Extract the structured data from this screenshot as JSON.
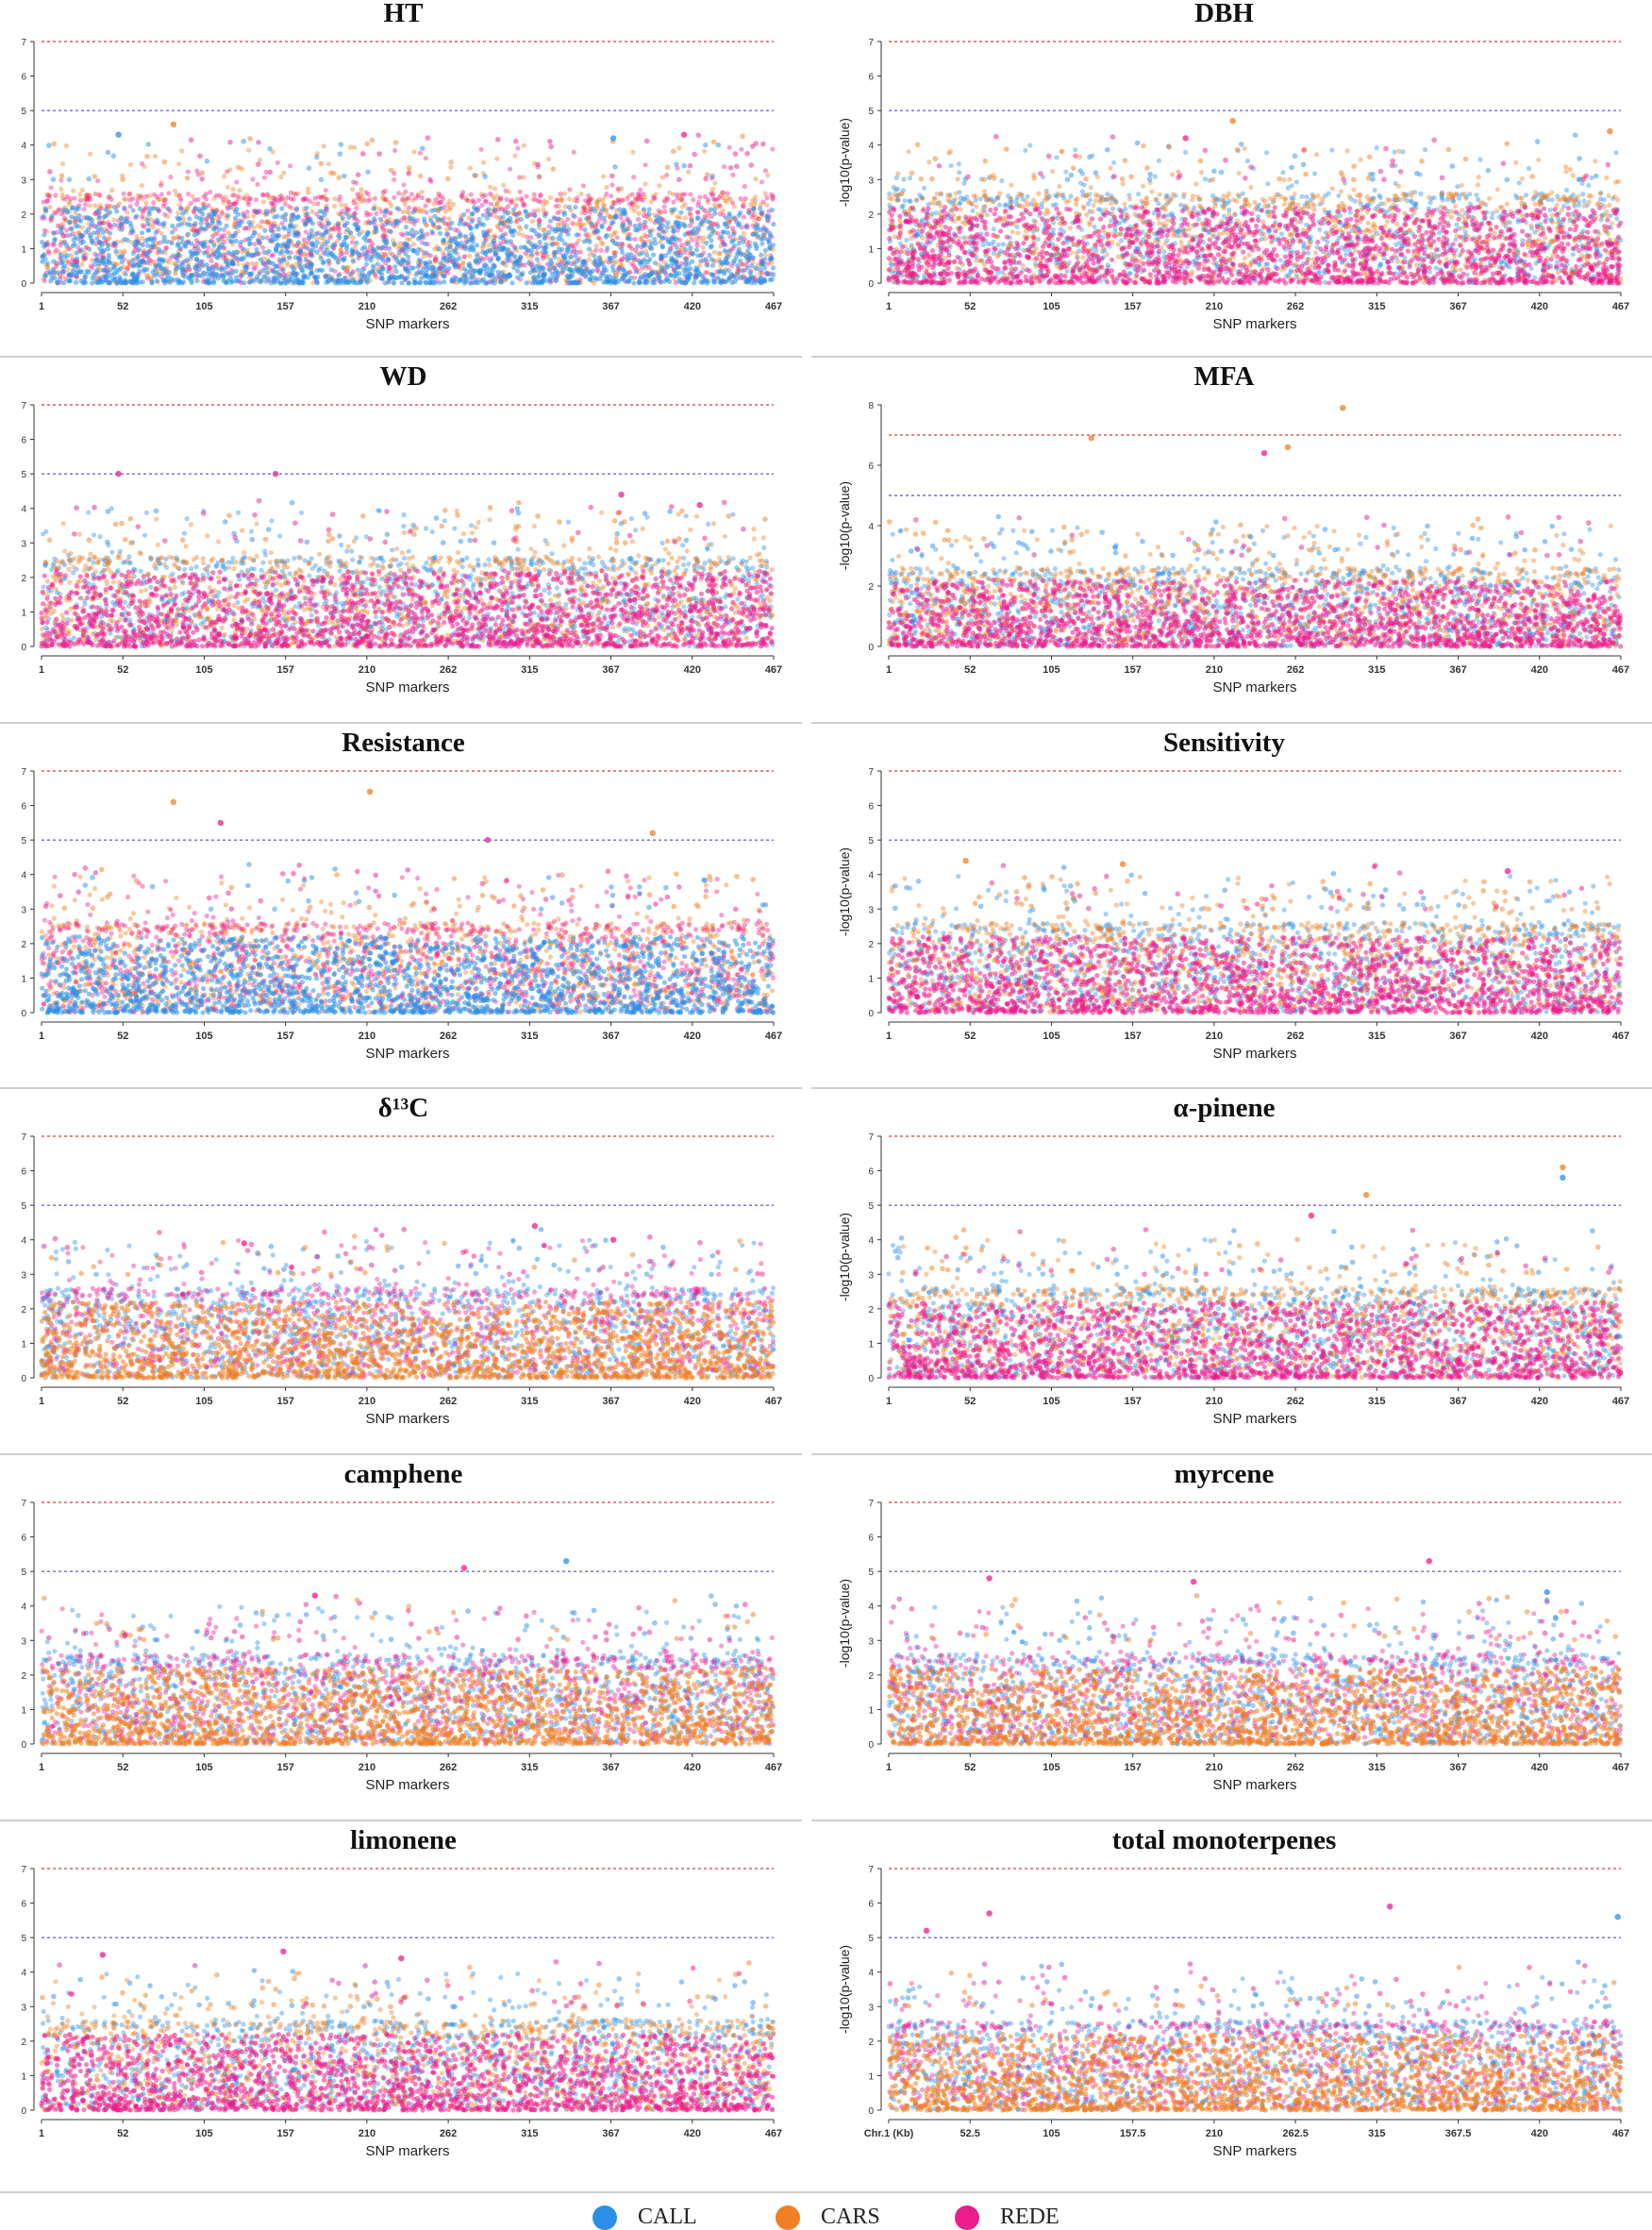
{
  "colors": {
    "CALL": "#2b8fe8",
    "CARS": "#ef7f22",
    "REDE": "#ec1c8c",
    "threshold_upper": "#e05a5a",
    "threshold_lower": "#6a6ad8",
    "axis": "#333333",
    "divider": "#cfcfcf"
  },
  "legend": {
    "items": [
      {
        "name": "CALL",
        "label": "CALL",
        "color": "#2b8fe8"
      },
      {
        "name": "CARS",
        "label": "CARS",
        "color": "#ef7f22"
      },
      {
        "name": "REDE",
        "label": "REDE",
        "color": "#ec1c8c"
      }
    ]
  },
  "chart_data": [
    {
      "id": "ht",
      "type": "scatter",
      "title": "HT",
      "xlabel": "SNP markers",
      "ylabel": "",
      "x_ticks": [
        "1",
        "52",
        "105",
        "157",
        "210",
        "262",
        "315",
        "367",
        "420",
        "467"
      ],
      "ylim": [
        0,
        7
      ],
      "y_ticks": [
        0,
        1,
        2,
        3,
        4,
        5,
        6,
        7
      ],
      "thresholds": [
        5,
        7
      ],
      "dominant": "CALL",
      "peaks": [
        {
          "x": 50,
          "y": 4.3,
          "series": "CALL"
        },
        {
          "x": 85,
          "y": 4.6,
          "series": "CARS"
        },
        {
          "x": 410,
          "y": 4.3,
          "series": "REDE"
        },
        {
          "x": 365,
          "y": 4.2,
          "series": "CALL"
        }
      ]
    },
    {
      "id": "dbh",
      "type": "scatter",
      "title": "DBH",
      "xlabel": "SNP markers",
      "ylabel": "-log10(p-value)",
      "x_ticks": [
        "1",
        "52",
        "105",
        "157",
        "210",
        "262",
        "315",
        "367",
        "420",
        "467"
      ],
      "ylim": [
        0,
        7
      ],
      "y_ticks": [
        0,
        1,
        2,
        3,
        4,
        5,
        6,
        7
      ],
      "thresholds": [
        5,
        7
      ],
      "dominant": "REDE",
      "peaks": [
        {
          "x": 220,
          "y": 4.7,
          "series": "CARS"
        },
        {
          "x": 460,
          "y": 4.4,
          "series": "CARS"
        },
        {
          "x": 190,
          "y": 4.2,
          "series": "REDE"
        }
      ]
    },
    {
      "id": "wd",
      "type": "scatter",
      "title": "WD",
      "xlabel": "SNP markers",
      "ylabel": "",
      "x_ticks": [
        "1",
        "52",
        "105",
        "157",
        "210",
        "262",
        "315",
        "367",
        "420",
        "467"
      ],
      "ylim": [
        0,
        7
      ],
      "y_ticks": [
        0,
        1,
        2,
        3,
        4,
        5,
        6,
        7
      ],
      "thresholds": [
        5,
        7
      ],
      "dominant": "REDE",
      "peaks": [
        {
          "x": 50,
          "y": 5.0,
          "series": "REDE"
        },
        {
          "x": 150,
          "y": 5.0,
          "series": "REDE"
        },
        {
          "x": 370,
          "y": 4.4,
          "series": "REDE"
        },
        {
          "x": 420,
          "y": 4.1,
          "series": "REDE"
        }
      ]
    },
    {
      "id": "mfa",
      "type": "scatter",
      "title": "MFA",
      "xlabel": "SNP markers",
      "ylabel": "-log10(p-value)",
      "x_ticks": [
        "1",
        "52",
        "105",
        "157",
        "210",
        "262",
        "315",
        "367",
        "420",
        "467"
      ],
      "ylim": [
        0,
        8
      ],
      "y_ticks": [
        0,
        2,
        4,
        6,
        8
      ],
      "thresholds": [
        5,
        7
      ],
      "dominant": "REDE",
      "peaks": [
        {
          "x": 290,
          "y": 7.9,
          "series": "CARS"
        },
        {
          "x": 130,
          "y": 6.9,
          "series": "CARS"
        },
        {
          "x": 255,
          "y": 6.6,
          "series": "CARS"
        },
        {
          "x": 240,
          "y": 6.4,
          "series": "REDE"
        }
      ]
    },
    {
      "id": "resistance",
      "type": "scatter",
      "title": "Resistance",
      "xlabel": "SNP markers",
      "ylabel": "",
      "x_ticks": [
        "1",
        "52",
        "105",
        "157",
        "210",
        "262",
        "315",
        "367",
        "420",
        "467"
      ],
      "ylim": [
        0,
        7
      ],
      "y_ticks": [
        0,
        1,
        2,
        3,
        4,
        5,
        6,
        7
      ],
      "thresholds": [
        5,
        7
      ],
      "dominant": "CALL",
      "peaks": [
        {
          "x": 210,
          "y": 6.4,
          "series": "CARS"
        },
        {
          "x": 85,
          "y": 6.1,
          "series": "CARS"
        },
        {
          "x": 115,
          "y": 5.5,
          "series": "REDE"
        },
        {
          "x": 390,
          "y": 5.2,
          "series": "CARS"
        },
        {
          "x": 285,
          "y": 5.0,
          "series": "REDE"
        }
      ]
    },
    {
      "id": "sensitivity",
      "type": "scatter",
      "title": "Sensitivity",
      "xlabel": "SNP markers",
      "ylabel": "-log10(p-value)",
      "x_ticks": [
        "1",
        "52",
        "105",
        "157",
        "210",
        "262",
        "315",
        "367",
        "420",
        "467"
      ],
      "ylim": [
        0,
        7
      ],
      "y_ticks": [
        0,
        1,
        2,
        3,
        4,
        5,
        6,
        7
      ],
      "thresholds": [
        5,
        7
      ],
      "dominant": "REDE",
      "peaks": [
        {
          "x": 50,
          "y": 4.4,
          "series": "CARS"
        },
        {
          "x": 150,
          "y": 4.3,
          "series": "CARS"
        },
        {
          "x": 395,
          "y": 4.1,
          "series": "REDE"
        }
      ]
    },
    {
      "id": "d13c",
      "type": "scatter",
      "title": "δ¹³C",
      "xlabel": "SNP markers",
      "ylabel": "",
      "x_ticks": [
        "1",
        "52",
        "105",
        "157",
        "210",
        "262",
        "315",
        "367",
        "420",
        "467"
      ],
      "ylim": [
        0,
        7
      ],
      "y_ticks": [
        0,
        1,
        2,
        3,
        4,
        5,
        6,
        7
      ],
      "thresholds": [
        5,
        7
      ],
      "dominant": "CARS",
      "peaks": [
        {
          "x": 315,
          "y": 4.4,
          "series": "REDE"
        },
        {
          "x": 130,
          "y": 3.9,
          "series": "REDE"
        },
        {
          "x": 365,
          "y": 4.0,
          "series": "REDE"
        }
      ]
    },
    {
      "id": "alpha-pinene",
      "type": "scatter",
      "title": "α-pinene",
      "xlabel": "SNP markers",
      "ylabel": "-log10(p-value)",
      "x_ticks": [
        "1",
        "52",
        "105",
        "157",
        "210",
        "262",
        "315",
        "367",
        "420",
        "467"
      ],
      "ylim": [
        0,
        7
      ],
      "y_ticks": [
        0,
        1,
        2,
        3,
        4,
        5,
        6,
        7
      ],
      "thresholds": [
        5,
        7
      ],
      "dominant": "REDE",
      "peaks": [
        {
          "x": 430,
          "y": 6.1,
          "series": "CARS"
        },
        {
          "x": 430,
          "y": 5.8,
          "series": "CALL"
        },
        {
          "x": 305,
          "y": 5.3,
          "series": "CARS"
        },
        {
          "x": 270,
          "y": 4.7,
          "series": "REDE"
        }
      ]
    },
    {
      "id": "camphene",
      "type": "scatter",
      "title": "camphene",
      "xlabel": "SNP markers",
      "ylabel": "",
      "x_ticks": [
        "1",
        "52",
        "105",
        "157",
        "210",
        "262",
        "315",
        "367",
        "420",
        "467"
      ],
      "ylim": [
        0,
        7
      ],
      "y_ticks": [
        0,
        1,
        2,
        3,
        4,
        5,
        6,
        7
      ],
      "thresholds": [
        5,
        7
      ],
      "dominant": "CARS",
      "peaks": [
        {
          "x": 335,
          "y": 5.3,
          "series": "CALL"
        },
        {
          "x": 270,
          "y": 5.1,
          "series": "REDE"
        },
        {
          "x": 175,
          "y": 4.3,
          "series": "REDE"
        }
      ]
    },
    {
      "id": "myrcene",
      "type": "scatter",
      "title": "myrcene",
      "xlabel": "SNP markers",
      "ylabel": "-log10(p-value)",
      "x_ticks": [
        "1",
        "52",
        "105",
        "157",
        "210",
        "262",
        "315",
        "367",
        "420",
        "467"
      ],
      "ylim": [
        0,
        7
      ],
      "y_ticks": [
        0,
        1,
        2,
        3,
        4,
        5,
        6,
        7
      ],
      "thresholds": [
        5,
        7
      ],
      "dominant": "CARS",
      "peaks": [
        {
          "x": 345,
          "y": 5.3,
          "series": "REDE"
        },
        {
          "x": 65,
          "y": 4.8,
          "series": "REDE"
        },
        {
          "x": 195,
          "y": 4.7,
          "series": "REDE"
        },
        {
          "x": 420,
          "y": 4.4,
          "series": "CALL"
        }
      ]
    },
    {
      "id": "limonene",
      "type": "scatter",
      "title": "limonene",
      "xlabel": "SNP markers",
      "ylabel": "",
      "x_ticks": [
        "1",
        "52",
        "105",
        "157",
        "210",
        "262",
        "315",
        "367",
        "420",
        "467"
      ],
      "ylim": [
        0,
        7
      ],
      "y_ticks": [
        0,
        1,
        2,
        3,
        4,
        5,
        6,
        7
      ],
      "thresholds": [
        5,
        7
      ],
      "dominant": "REDE",
      "peaks": [
        {
          "x": 155,
          "y": 4.6,
          "series": "REDE"
        },
        {
          "x": 40,
          "y": 4.5,
          "series": "REDE"
        },
        {
          "x": 230,
          "y": 4.4,
          "series": "REDE"
        }
      ]
    },
    {
      "id": "total-monoterpenes",
      "type": "scatter",
      "title": "total monoterpenes",
      "xlabel": "SNP markers",
      "ylabel": "-log10(p-value)",
      "x_ticks": [
        "Chr.1 (Kb)",
        "52.5",
        "105",
        "157.5",
        "210",
        "262.5",
        "315",
        "367.5",
        "420",
        "467"
      ],
      "ylim": [
        0,
        7
      ],
      "y_ticks": [
        0,
        1,
        2,
        3,
        4,
        5,
        6,
        7
      ],
      "thresholds": [
        5,
        7
      ],
      "dominant": "CARS",
      "peaks": [
        {
          "x": 320,
          "y": 5.9,
          "series": "REDE"
        },
        {
          "x": 465,
          "y": 5.6,
          "series": "CALL"
        },
        {
          "x": 65,
          "y": 5.7,
          "series": "REDE"
        },
        {
          "x": 25,
          "y": 5.2,
          "series": "REDE"
        }
      ]
    }
  ]
}
